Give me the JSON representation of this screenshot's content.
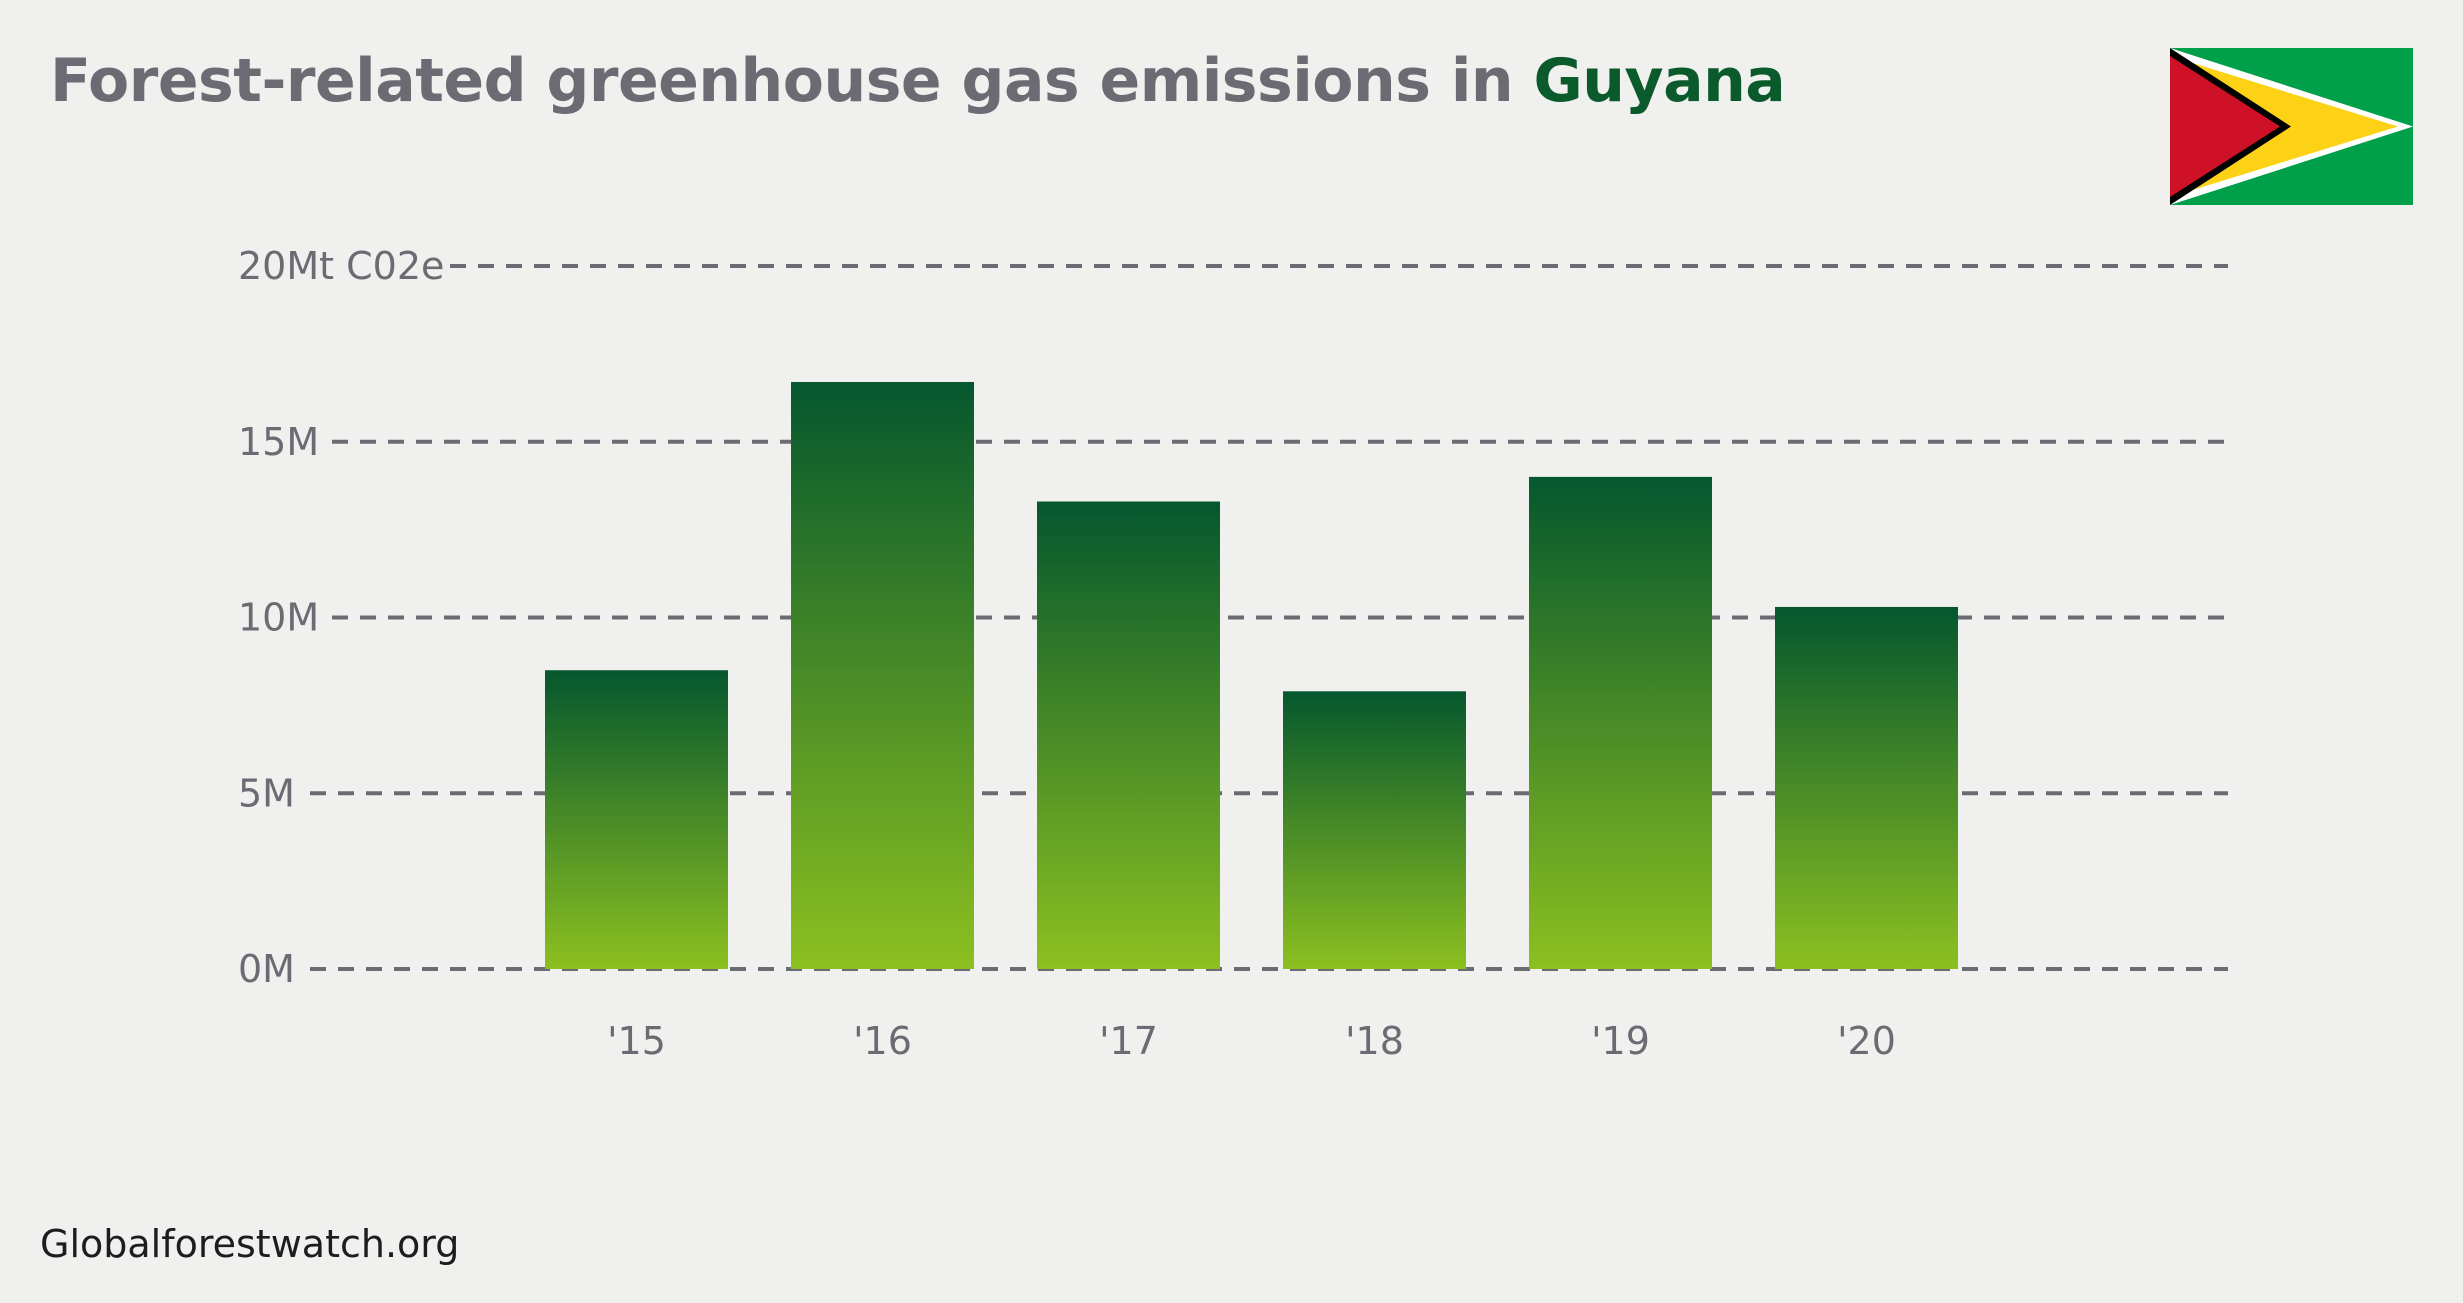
{
  "header": {
    "title_prefix": "Forest-related greenhouse gas emissions in ",
    "title_country": "Guyana"
  },
  "flag": {
    "icon": "guyana-flag-icon",
    "colors": {
      "green": "#00a04a",
      "white": "#ffffff",
      "yellow": "#fcd116",
      "black": "#000000",
      "red": "#ce1126"
    }
  },
  "footer": {
    "source": "Globalforestwatch.org"
  },
  "chart_data": {
    "type": "bar",
    "title": "Forest-related greenhouse gas emissions in Guyana",
    "categories": [
      "'15",
      "'16",
      "'17",
      "'18",
      "'19",
      "'20"
    ],
    "values": [
      8.5,
      16.7,
      13.3,
      7.9,
      14.0,
      10.3
    ],
    "unit": "Mt C02e",
    "xlabel": "",
    "ylabel": "",
    "ylim": [
      0,
      20
    ],
    "yticks": [
      {
        "value": 0,
        "label": "0M"
      },
      {
        "value": 5,
        "label": "5M"
      },
      {
        "value": 10,
        "label": "10M"
      },
      {
        "value": 15,
        "label": "15M"
      },
      {
        "value": 20,
        "label": "20Mt C02e"
      }
    ],
    "grid": true,
    "legend": "none",
    "bar_gradient": {
      "top": "#05572e",
      "bottom": "#8cc020"
    },
    "grid_color": "#6b6b74"
  }
}
